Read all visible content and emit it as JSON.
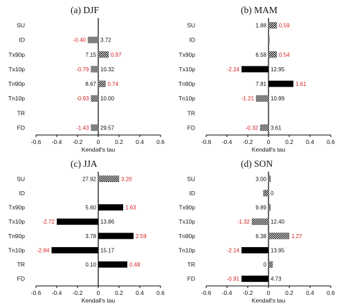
{
  "colors": {
    "signif": "#d62020",
    "text": "#111111",
    "bar": "#000000",
    "axis": "#000000"
  },
  "chart_data": [
    {
      "type": "bar",
      "orientation": "horizontal",
      "title": "(a) DJF",
      "xlabel": "Kendall's tau",
      "xlim": [
        -0.6,
        0.6
      ],
      "xticks": [
        "-0.6",
        "-0.4",
        "-0.2",
        "0",
        "0.2",
        "0.4",
        "0.6"
      ],
      "categories": [
        "SU",
        "ID",
        "Tx90p",
        "Tx10p",
        "Tn90p",
        "Tn10p",
        "TR",
        "FD"
      ],
      "values": [
        null,
        -0.1,
        0.1,
        -0.07,
        0.07,
        -0.07,
        null,
        -0.07
      ],
      "patterns": [
        "",
        "checker",
        "checker",
        "checker",
        "checker",
        "checker",
        "",
        "checker"
      ],
      "labels": [
        "",
        "3.72",
        "7.15",
        "10.32",
        "8.67",
        "10.00",
        "",
        "29.57"
      ],
      "trends": [
        "",
        "-0.40",
        "0.97",
        "-0.79",
        "0.74",
        "-0.93",
        "",
        "-1.43"
      ]
    },
    {
      "type": "bar",
      "orientation": "horizontal",
      "title": "(b) MAM",
      "xlabel": "Kendall's tau",
      "xlim": [
        -0.6,
        0.6
      ],
      "xticks": [
        "-0.6",
        "-0.4",
        "-0.2",
        "0",
        "0.2",
        "0.4",
        "0.6"
      ],
      "categories": [
        "SU",
        "ID",
        "Tx90p",
        "Tx10p",
        "Tn90p",
        "Tn10p",
        "TR",
        "FD"
      ],
      "values": [
        0.08,
        0.01,
        0.08,
        -0.26,
        0.24,
        -0.12,
        null,
        -0.08
      ],
      "patterns": [
        "checker",
        "checker",
        "checker",
        "solid",
        "solid",
        "checker",
        "",
        "checker"
      ],
      "labels": [
        "1.88",
        "",
        "6.58",
        "12.95",
        "7.81",
        "10.99",
        "",
        "3.61"
      ],
      "trends": [
        "0.59",
        "",
        "0.54",
        "-2.24",
        "1.61",
        "-1.21",
        "",
        "-0.32"
      ]
    },
    {
      "type": "bar",
      "orientation": "horizontal",
      "title": "(c) JJA",
      "xlabel": "Kendall's tau",
      "xlim": [
        -0.6,
        0.6
      ],
      "xticks": [
        "-0.6",
        "-0.4",
        "-0.2",
        "0",
        "0.2",
        "0.4",
        "0.6"
      ],
      "categories": [
        "SU",
        "ID",
        "Tx90p",
        "Tx10p",
        "Tn90p",
        "Tn10p",
        "TR",
        "FD"
      ],
      "values": [
        0.2,
        null,
        0.24,
        -0.4,
        0.34,
        -0.45,
        0.28,
        null
      ],
      "patterns": [
        "checker",
        "",
        "solid",
        "solid",
        "solid",
        "solid",
        "solid",
        ""
      ],
      "labels": [
        "27.92",
        "",
        "5.60",
        "13.86",
        "3.78",
        "15.17",
        "0.10",
        ""
      ],
      "trends": [
        "3.20",
        "",
        "1.63",
        "-2.72",
        "2.59",
        "-2.84",
        "0.48",
        ""
      ]
    },
    {
      "type": "bar",
      "orientation": "horizontal",
      "title": "(d) SON",
      "xlabel": "Kendall's tau",
      "xlim": [
        -0.6,
        0.6
      ],
      "xticks": [
        "-0.6",
        "-0.4",
        "-0.2",
        "0",
        "0.2",
        "0.4",
        "0.6"
      ],
      "categories": [
        "SU",
        "ID",
        "Tx90p",
        "Tx10p",
        "Tn90p",
        "Tn10p",
        "TR",
        "FD"
      ],
      "values": [
        0.02,
        -0.05,
        0.02,
        -0.16,
        0.2,
        -0.26,
        0.04,
        -0.26
      ],
      "patterns": [
        "checker",
        "checker",
        "checker",
        "checker",
        "checker",
        "solid",
        "checker",
        "solid"
      ],
      "labels": [
        "3.00",
        "0",
        "9.89",
        "12.40",
        "6.38",
        "13.95",
        "0",
        "4.73"
      ],
      "trends": [
        "",
        "",
        "",
        "-1.32",
        "1.27",
        "-2.14",
        "",
        "-0.91"
      ]
    }
  ]
}
